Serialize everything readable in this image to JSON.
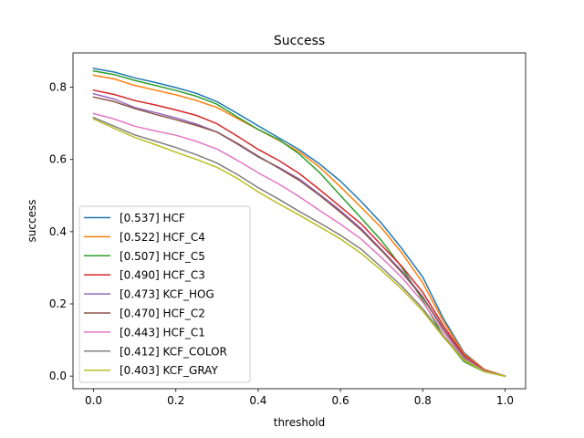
{
  "chart_data": {
    "type": "line",
    "title": "Success",
    "xlabel": "threshold",
    "ylabel": "success",
    "xlim": [
      -0.05,
      1.05
    ],
    "ylim": [
      -0.035,
      0.895
    ],
    "xticks": [
      0.0,
      0.2,
      0.4,
      0.6,
      0.8,
      1.0
    ],
    "xtick_labels": [
      "0.0",
      "0.2",
      "0.4",
      "0.6",
      "0.8",
      "1.0"
    ],
    "yticks": [
      0.0,
      0.2,
      0.4,
      0.6,
      0.8
    ],
    "ytick_labels": [
      "0.0",
      "0.2",
      "0.4",
      "0.6",
      "0.8"
    ],
    "grid": false,
    "legend_position": "lower-left",
    "x": [
      0.0,
      0.05,
      0.1,
      0.15,
      0.2,
      0.25,
      0.3,
      0.35,
      0.4,
      0.45,
      0.5,
      0.55,
      0.6,
      0.65,
      0.7,
      0.75,
      0.8,
      0.85,
      0.9,
      0.95,
      1.0
    ],
    "series": [
      {
        "name": "[0.537] HCF",
        "color": "#1f77b4",
        "values": [
          0.852,
          0.842,
          0.826,
          0.813,
          0.799,
          0.783,
          0.76,
          0.727,
          0.693,
          0.66,
          0.627,
          0.587,
          0.54,
          0.484,
          0.423,
          0.352,
          0.274,
          0.16,
          0.065,
          0.018,
          0.0
        ]
      },
      {
        "name": "[0.522] HCF_C4",
        "color": "#ff7f0e",
        "values": [
          0.833,
          0.823,
          0.805,
          0.792,
          0.779,
          0.763,
          0.744,
          0.713,
          0.683,
          0.653,
          0.621,
          0.578,
          0.524,
          0.468,
          0.41,
          0.34,
          0.258,
          0.152,
          0.062,
          0.018,
          0.0
        ]
      },
      {
        "name": "[0.507] HCF_C5",
        "color": "#2ca02c",
        "values": [
          0.845,
          0.835,
          0.819,
          0.805,
          0.791,
          0.775,
          0.753,
          0.717,
          0.683,
          0.655,
          0.615,
          0.563,
          0.5,
          0.438,
          0.375,
          0.3,
          0.21,
          0.11,
          0.04,
          0.012,
          0.0
        ]
      },
      {
        "name": "[0.490] HCF_C3",
        "color": "#d62728",
        "values": [
          0.792,
          0.78,
          0.763,
          0.751,
          0.737,
          0.722,
          0.699,
          0.664,
          0.628,
          0.597,
          0.561,
          0.516,
          0.469,
          0.422,
          0.362,
          0.303,
          0.232,
          0.14,
          0.058,
          0.016,
          0.0
        ]
      },
      {
        "name": "[0.473] KCF_HOG",
        "color": "#9467bd",
        "values": [
          0.782,
          0.767,
          0.744,
          0.73,
          0.715,
          0.698,
          0.676,
          0.642,
          0.607,
          0.578,
          0.546,
          0.503,
          0.458,
          0.409,
          0.35,
          0.29,
          0.22,
          0.132,
          0.055,
          0.015,
          0.0
        ]
      },
      {
        "name": "[0.470] HCF_C2",
        "color": "#8c564b",
        "values": [
          0.773,
          0.76,
          0.741,
          0.725,
          0.71,
          0.694,
          0.676,
          0.644,
          0.609,
          0.576,
          0.542,
          0.5,
          0.454,
          0.405,
          0.347,
          0.286,
          0.218,
          0.13,
          0.054,
          0.015,
          0.0
        ]
      },
      {
        "name": "[0.443] HCF_C1",
        "color": "#e377c2",
        "values": [
          0.727,
          0.712,
          0.692,
          0.679,
          0.667,
          0.65,
          0.629,
          0.597,
          0.563,
          0.532,
          0.497,
          0.458,
          0.421,
          0.38,
          0.328,
          0.272,
          0.205,
          0.122,
          0.05,
          0.014,
          0.0
        ]
      },
      {
        "name": "[0.412] KCF_COLOR",
        "color": "#7f7f7f",
        "values": [
          0.716,
          0.692,
          0.668,
          0.651,
          0.633,
          0.613,
          0.59,
          0.558,
          0.522,
          0.49,
          0.456,
          0.424,
          0.39,
          0.352,
          0.301,
          0.248,
          0.187,
          0.112,
          0.046,
          0.013,
          0.0
        ]
      },
      {
        "name": "[0.403] KCF_GRAY",
        "color": "#bcbd22",
        "values": [
          0.712,
          0.686,
          0.661,
          0.641,
          0.62,
          0.6,
          0.578,
          0.547,
          0.51,
          0.477,
          0.446,
          0.413,
          0.38,
          0.34,
          0.292,
          0.24,
          0.18,
          0.108,
          0.044,
          0.012,
          0.0
        ]
      }
    ]
  }
}
